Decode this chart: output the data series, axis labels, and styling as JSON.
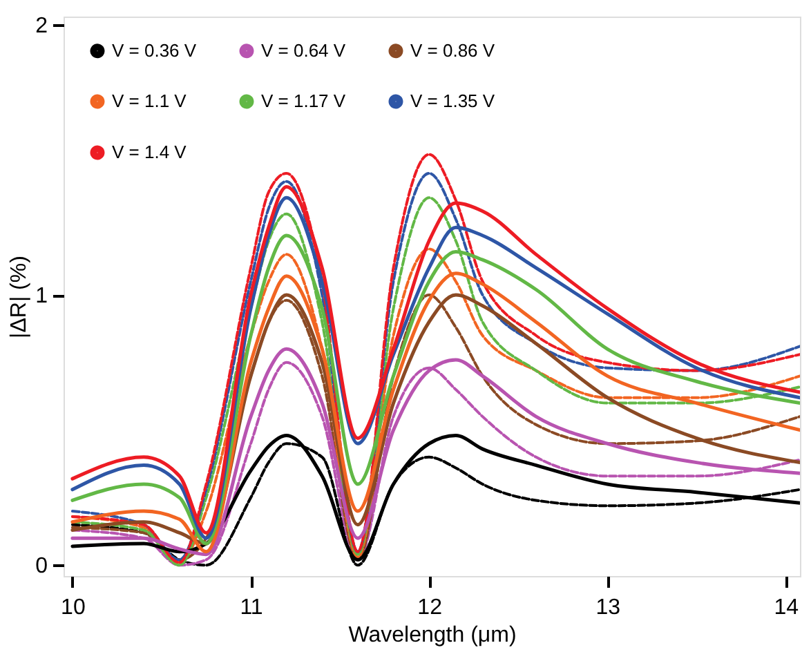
{
  "chart_data": {
    "type": "line",
    "xlabel": "Wavelength (μm)",
    "ylabel": "|ΔR| (%)",
    "xlim": [
      9.95,
      14.08
    ],
    "xticks": [
      10,
      11,
      12,
      13,
      14
    ],
    "ylim": [
      -0.04,
      2.03
    ],
    "yticks": [
      0,
      1,
      2
    ],
    "grid": false,
    "legend": "top left",
    "marker": "none",
    "x": [
      10,
      10.4,
      10.6,
      10.75,
      11.0,
      11.1,
      11.2,
      11.4,
      11.6,
      11.8,
      12.0,
      12.15,
      12.3,
      12.6,
      13.0,
      13.5,
      14.08
    ],
    "series": [
      {
        "name": "V = 0.36 V",
        "color": "#000000",
        "line_style": "solid",
        "values": [
          0.07,
          0.08,
          0.05,
          0.08,
          0.35,
          0.44,
          0.48,
          0.33,
          0.02,
          0.3,
          0.45,
          0.48,
          0.43,
          0.37,
          0.3,
          0.27,
          0.23
        ]
      },
      {
        "name": "V = 0.64 V",
        "color": "#b854b0",
        "line_style": "solid",
        "values": [
          0.1,
          0.1,
          0.06,
          0.04,
          0.55,
          0.72,
          0.8,
          0.6,
          0.1,
          0.5,
          0.72,
          0.76,
          0.7,
          0.55,
          0.45,
          0.38,
          0.34
        ]
      },
      {
        "name": "V = 0.86 V",
        "color": "#8b4a24",
        "line_style": "solid",
        "values": [
          0.13,
          0.16,
          0.12,
          0.08,
          0.7,
          0.9,
          1.0,
          0.75,
          0.15,
          0.6,
          0.9,
          1.0,
          0.96,
          0.82,
          0.62,
          0.47,
          0.38
        ]
      },
      {
        "name": "V = 1.1 V",
        "color": "#f26522",
        "line_style": "solid",
        "values": [
          0.16,
          0.2,
          0.17,
          0.05,
          0.75,
          0.95,
          1.07,
          0.8,
          0.2,
          0.65,
          0.98,
          1.08,
          1.04,
          0.9,
          0.7,
          0.6,
          0.5
        ]
      },
      {
        "name": "V = 1.17 V",
        "color": "#62b846",
        "line_style": "solid",
        "values": [
          0.24,
          0.3,
          0.25,
          0.08,
          0.85,
          1.1,
          1.22,
          0.95,
          0.3,
          0.7,
          1.05,
          1.16,
          1.13,
          1.02,
          0.8,
          0.68,
          0.6
        ]
      },
      {
        "name": "V = 1.35 V",
        "color": "#2e56a6",
        "line_style": "solid",
        "values": [
          0.28,
          0.37,
          0.3,
          0.1,
          0.95,
          1.22,
          1.36,
          1.05,
          0.45,
          0.78,
          1.1,
          1.25,
          1.22,
          1.1,
          0.93,
          0.73,
          0.62
        ]
      },
      {
        "name": "V = 1.4 V",
        "color": "#ed1c24",
        "line_style": "solid",
        "values": [
          0.32,
          0.4,
          0.33,
          0.12,
          1.0,
          1.25,
          1.4,
          1.1,
          0.47,
          0.8,
          1.2,
          1.34,
          1.31,
          1.15,
          0.95,
          0.75,
          0.64
        ]
      },
      {
        "color": "#000000",
        "line_style": "dashed",
        "values": [
          0.15,
          0.12,
          0.02,
          0.0,
          0.25,
          0.38,
          0.45,
          0.4,
          0.0,
          0.3,
          0.4,
          0.36,
          0.3,
          0.24,
          0.22,
          0.23,
          0.28
        ]
      },
      {
        "color": "#b854b0",
        "line_style": "dashed",
        "values": [
          0.13,
          0.1,
          0.0,
          0.02,
          0.45,
          0.65,
          0.75,
          0.55,
          0.02,
          0.55,
          0.73,
          0.65,
          0.55,
          0.4,
          0.33,
          0.33,
          0.39
        ]
      },
      {
        "color": "#8b4a24",
        "line_style": "dashed",
        "values": [
          0.14,
          0.12,
          0.02,
          0.1,
          0.7,
          0.9,
          0.98,
          0.7,
          0.02,
          0.7,
          1.0,
          0.88,
          0.7,
          0.52,
          0.45,
          0.46,
          0.55
        ]
      },
      {
        "color": "#f26522",
        "line_style": "dashed",
        "values": [
          0.18,
          0.14,
          0.01,
          0.2,
          0.85,
          1.05,
          1.15,
          0.8,
          0.03,
          0.85,
          1.17,
          1.05,
          0.85,
          0.72,
          0.62,
          0.62,
          0.7
        ]
      },
      {
        "color": "#62b846",
        "line_style": "dashed",
        "values": [
          0.16,
          0.13,
          0.0,
          0.25,
          0.95,
          1.2,
          1.3,
          0.9,
          0.04,
          0.95,
          1.36,
          1.2,
          0.9,
          0.72,
          0.6,
          0.6,
          0.66
        ]
      },
      {
        "color": "#2e56a6",
        "line_style": "dashed",
        "values": [
          0.2,
          0.15,
          0.02,
          0.28,
          1.05,
          1.32,
          1.42,
          1.0,
          0.05,
          1.05,
          1.45,
          1.28,
          1.0,
          0.82,
          0.73,
          0.72,
          0.81
        ]
      },
      {
        "color": "#ed1c24",
        "line_style": "dashed",
        "values": [
          0.18,
          0.15,
          0.01,
          0.3,
          1.1,
          1.38,
          1.45,
          1.05,
          0.05,
          1.1,
          1.52,
          1.35,
          1.05,
          0.85,
          0.75,
          0.72,
          0.78
        ]
      }
    ]
  }
}
